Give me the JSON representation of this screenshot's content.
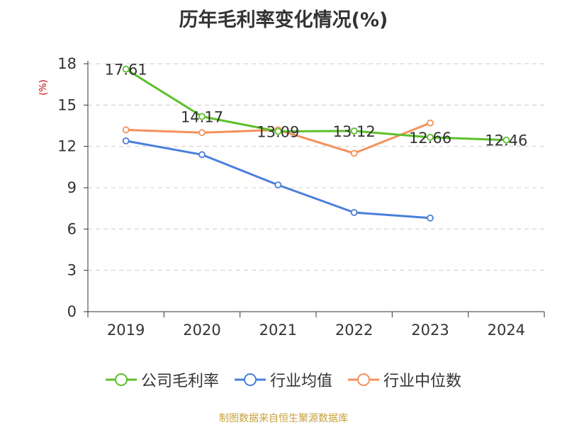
{
  "title": "历年毛利率变化情况(%)",
  "ylabel": "(%)",
  "source": "制图数据来自恒生聚源数据库",
  "chart_data": {
    "type": "line",
    "categories": [
      "2019",
      "2020",
      "2021",
      "2022",
      "2023",
      "2024"
    ],
    "ylim": [
      0,
      18
    ],
    "yticks": [
      0,
      3,
      6,
      9,
      12,
      15,
      18
    ],
    "grid": true,
    "legend_position": "bottom",
    "series": [
      {
        "name": "公司毛利率",
        "color": "#5cc02a",
        "values": [
          17.61,
          14.17,
          13.09,
          13.12,
          12.66,
          12.46
        ],
        "labels": [
          "17.61",
          "14.17",
          "13.09",
          "13.12",
          "12.66",
          "12.46"
        ]
      },
      {
        "name": "行业均值",
        "color": "#4a7fdb",
        "values": [
          12.4,
          11.4,
          9.2,
          7.2,
          6.8,
          null
        ]
      },
      {
        "name": "行业中位数",
        "color": "#f5905a",
        "values": [
          13.2,
          13.0,
          13.2,
          11.5,
          13.7,
          null
        ]
      }
    ]
  }
}
